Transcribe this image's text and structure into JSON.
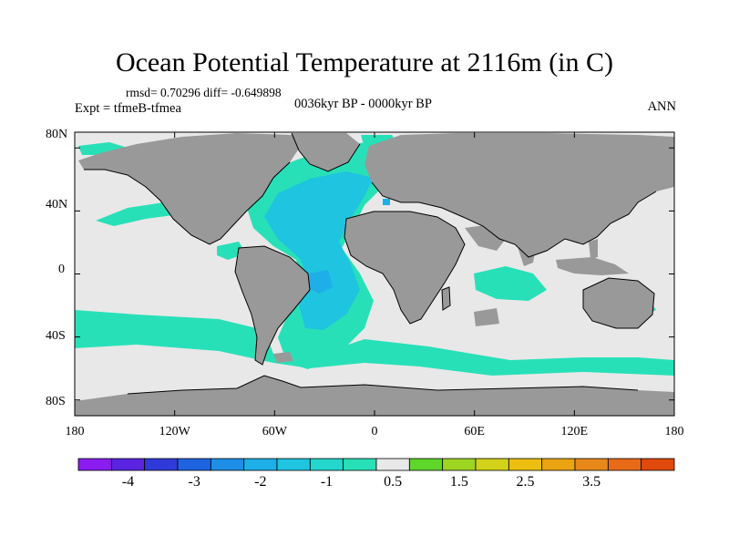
{
  "title": "Ocean Potential Temperature at 2116m (in C)",
  "stats": "rmsd= 0.70296 diff= -0.649898",
  "experiment": "Expt = tfmeB-tfmea",
  "period": "0036kyr BP - 0000kyr BP",
  "season": "ANN",
  "map": {
    "lon_range": [
      -180,
      180
    ],
    "lat_range": [
      -90,
      90
    ],
    "lat_ticks": [
      {
        "value": 80,
        "label": "80N"
      },
      {
        "value": 40,
        "label": "40N"
      },
      {
        "value": 0,
        "label": "0"
      },
      {
        "value": -40,
        "label": "40S"
      },
      {
        "value": -80,
        "label": "80S"
      }
    ],
    "lon_ticks": [
      {
        "value": -180,
        "label": "180"
      },
      {
        "value": -120,
        "label": "120W"
      },
      {
        "value": -60,
        "label": "60W"
      },
      {
        "value": 0,
        "label": "0"
      },
      {
        "value": 60,
        "label": "60E"
      },
      {
        "value": 120,
        "label": "120E"
      },
      {
        "value": 180,
        "label": "180"
      }
    ]
  },
  "colorbar": {
    "colors": [
      "#8a1cf0",
      "#5a24e2",
      "#2f3ad8",
      "#1e64e0",
      "#1e8ee6",
      "#1eaee8",
      "#1ec4e0",
      "#24d6cc",
      "#28e0b8",
      "#e8e8e8",
      "#5ed62a",
      "#9ed422",
      "#d2d21a",
      "#ecbe10",
      "#eaa412",
      "#e8881a",
      "#e86a18",
      "#e04a0c"
    ],
    "labels": [
      {
        "text": "-4",
        "index": 1
      },
      {
        "text": "-3",
        "index": 3
      },
      {
        "text": "-2",
        "index": 5
      },
      {
        "text": "-1",
        "index": 7
      },
      {
        "text": "0.5",
        "index": 9
      },
      {
        "text": "1.5",
        "index": 11
      },
      {
        "text": "2.5",
        "index": 13
      },
      {
        "text": "3.5",
        "index": 15
      }
    ]
  },
  "colors": {
    "land": "#999999",
    "near_zero": "#e8e8e8",
    "band_minus1": "#28e0b8",
    "band_minus1_5": "#1ec4e0",
    "band_minus2": "#1eaee8",
    "band_plus1": "#9ed422",
    "coast": "#000000"
  }
}
